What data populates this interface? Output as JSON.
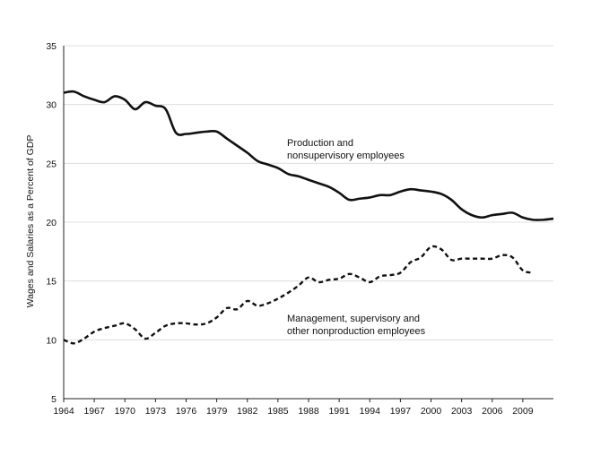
{
  "chart_data": {
    "type": "line",
    "title": "",
    "xlabel": "",
    "ylabel": "Wages and Salaries as a Percent of GDP",
    "xlim": [
      1964,
      2012
    ],
    "ylim": [
      5,
      35
    ],
    "yticks": [
      5,
      10,
      15,
      20,
      25,
      30,
      35
    ],
    "xticks": [
      1964,
      1967,
      1970,
      1973,
      1976,
      1979,
      1982,
      1985,
      1988,
      1991,
      1994,
      1997,
      2000,
      2003,
      2006,
      2009
    ],
    "grid": "horizontal",
    "series": [
      {
        "name": "Production and nonsupervisory employees",
        "style": "solid",
        "color": "#111111",
        "x": [
          1964,
          1965,
          1966,
          1967,
          1968,
          1969,
          1970,
          1971,
          1972,
          1973,
          1974,
          1975,
          1976,
          1977,
          1978,
          1979,
          1980,
          1981,
          1982,
          1983,
          1984,
          1985,
          1986,
          1987,
          1988,
          1989,
          1990,
          1991,
          1992,
          1993,
          1994,
          1995,
          1996,
          1997,
          1998,
          1999,
          2000,
          2001,
          2002,
          2003,
          2004,
          2005,
          2006,
          2007,
          2008,
          2009,
          2010,
          2011,
          2012
        ],
        "y": [
          31.0,
          31.1,
          30.7,
          30.4,
          30.2,
          30.7,
          30.4,
          29.6,
          30.2,
          29.9,
          29.6,
          27.6,
          27.5,
          27.6,
          27.7,
          27.7,
          27.1,
          26.5,
          25.9,
          25.2,
          24.9,
          24.6,
          24.1,
          23.9,
          23.6,
          23.3,
          23.0,
          22.5,
          21.9,
          22.0,
          22.1,
          22.3,
          22.3,
          22.6,
          22.8,
          22.7,
          22.6,
          22.4,
          21.9,
          21.1,
          20.6,
          20.4,
          20.6,
          20.7,
          20.8,
          20.4,
          20.2,
          20.2,
          20.3
        ]
      },
      {
        "name": "Management, supervisory and other nonproduction employees",
        "style": "dashed",
        "color": "#111111",
        "x": [
          1964,
          1965,
          1966,
          1967,
          1968,
          1969,
          1970,
          1971,
          1972,
          1973,
          1974,
          1975,
          1976,
          1977,
          1978,
          1979,
          1980,
          1981,
          1982,
          1983,
          1984,
          1985,
          1986,
          1987,
          1988,
          1989,
          1990,
          1991,
          1992,
          1993,
          1994,
          1995,
          1996,
          1997,
          1998,
          1999,
          2000,
          2001,
          2002,
          2003,
          2004,
          2005,
          2006,
          2007,
          2008,
          2009,
          2010
        ],
        "y": [
          10.0,
          9.7,
          10.1,
          10.7,
          11.0,
          11.2,
          11.4,
          10.9,
          10.1,
          10.6,
          11.2,
          11.4,
          11.4,
          11.3,
          11.4,
          11.9,
          12.7,
          12.6,
          13.3,
          12.9,
          13.1,
          13.5,
          14.0,
          14.6,
          15.3,
          14.9,
          15.1,
          15.2,
          15.6,
          15.3,
          14.9,
          15.4,
          15.5,
          15.7,
          16.6,
          17.0,
          17.9,
          17.7,
          16.8,
          16.9,
          16.9,
          16.9,
          16.9,
          17.2,
          17.0,
          15.9,
          15.7
        ]
      }
    ],
    "annotations": [
      {
        "lines": [
          "Production and",
          "nonsupervisory employees"
        ],
        "series": 0
      },
      {
        "lines": [
          "Management, supervisory and",
          "other nonproduction employees"
        ],
        "series": 1
      }
    ],
    "legend": "none (inline annotations)"
  }
}
